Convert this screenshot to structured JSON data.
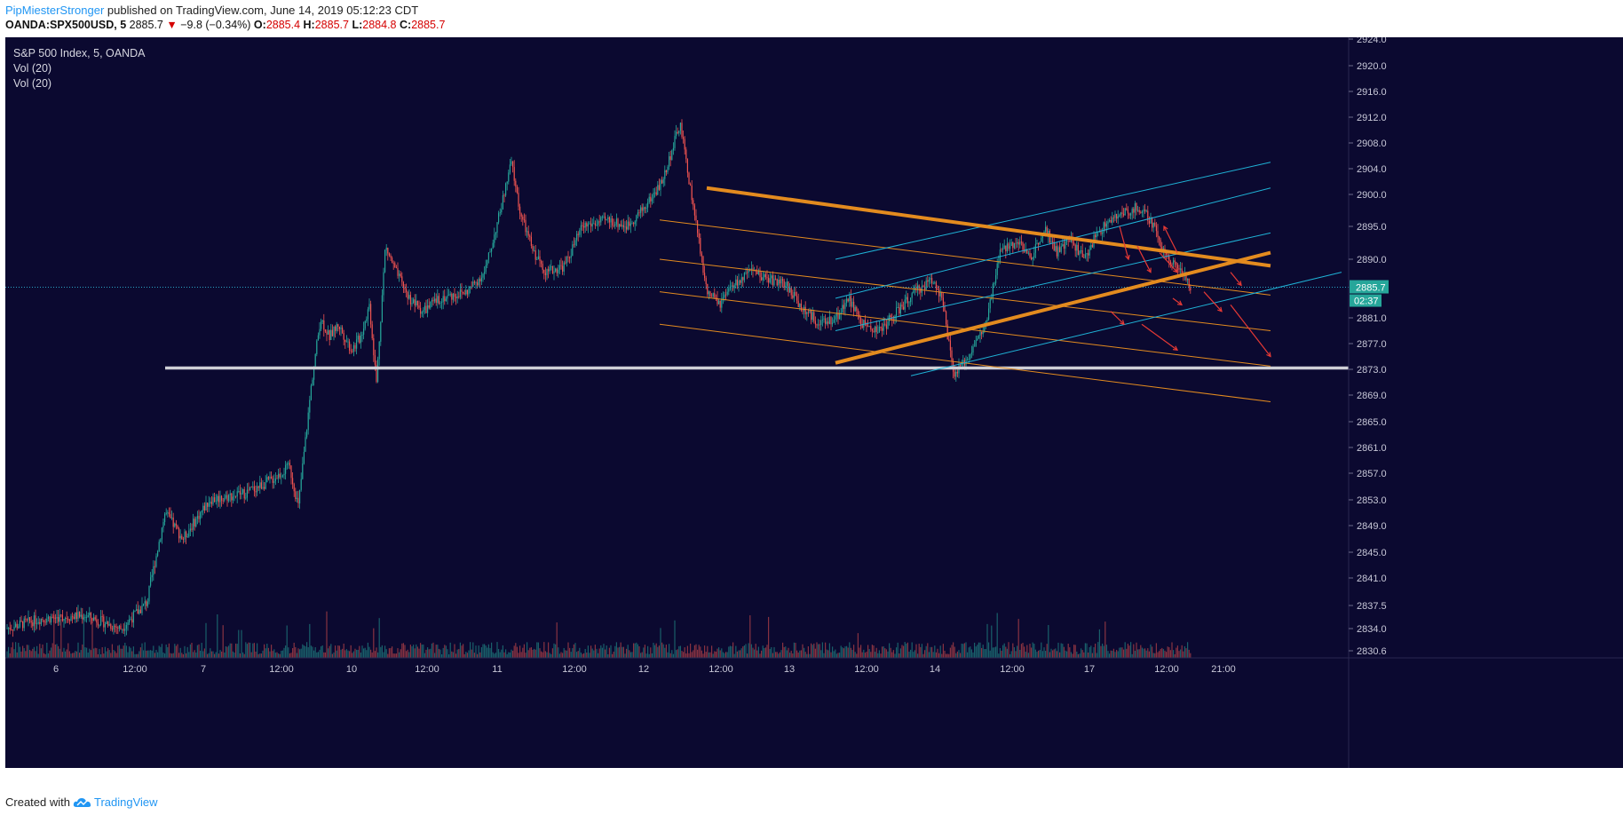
{
  "header": {
    "author": "PipMiesterStronger",
    "published_text": "published on TradingView.com, June 14, 2019 05:12:23 CDT",
    "symbol": "OANDA:SPX500USD, 5",
    "last": "2885.7",
    "change": "−9.8 (−0.34%)",
    "o_label": "O:",
    "o_value": "2885.4",
    "h_label": "H:",
    "h_value": "2885.7",
    "l_label": "L:",
    "l_value": "2884.8",
    "c_label": "C:",
    "c_value": "2885.7"
  },
  "overlay": {
    "title": "S&P 500 Index, 5, OANDA",
    "indicators": [
      "Vol (20)",
      "Vol (20)"
    ]
  },
  "footer": {
    "created_with": "Created with",
    "brand": "TradingView"
  },
  "colors": {
    "background": "#0b0930",
    "up": "#26a69a",
    "down": "#ef5350",
    "orange": "#e38b1f",
    "cyan": "#1fb2d6",
    "support": "#cfcfd6"
  },
  "chart_data": {
    "type": "candlestick",
    "symbol": "OANDA:SPX500USD",
    "interval": "5",
    "y_ticks": [
      2924.0,
      2920.0,
      2916.0,
      2912.0,
      2908.0,
      2904.0,
      2900.0,
      2895.0,
      2890.0,
      2881.0,
      2877.0,
      2873.0,
      2869.0,
      2865.0,
      2861.0,
      2857.0,
      2853.0,
      2849.0,
      2845.0,
      2841.0,
      2837.5,
      2834.0,
      2830.6
    ],
    "x_ticks": [
      "6",
      "12:00",
      "7",
      "12:00",
      "10",
      "12:00",
      "11",
      "12:00",
      "12",
      "12:00",
      "13",
      "12:00",
      "14",
      "12:00",
      "17",
      "12:00",
      "21:00"
    ],
    "last_price": "2885.7",
    "countdown": "02:37",
    "price_path": [
      [
        0,
        2834
      ],
      [
        40,
        2835.5
      ],
      [
        90,
        2836
      ],
      [
        130,
        2834
      ],
      [
        160,
        2838
      ],
      [
        180,
        2851
      ],
      [
        200,
        2847
      ],
      [
        230,
        2853
      ],
      [
        270,
        2854
      ],
      [
        300,
        2856
      ],
      [
        320,
        2858
      ],
      [
        330,
        2852
      ],
      [
        345,
        2871
      ],
      [
        355,
        2881
      ],
      [
        365,
        2878
      ],
      [
        375,
        2880
      ],
      [
        390,
        2876
      ],
      [
        400,
        2878
      ],
      [
        410,
        2883
      ],
      [
        418,
        2871
      ],
      [
        428,
        2892
      ],
      [
        440,
        2888
      ],
      [
        455,
        2884
      ],
      [
        470,
        2882
      ],
      [
        490,
        2884
      ],
      [
        520,
        2885
      ],
      [
        540,
        2888
      ],
      [
        555,
        2896
      ],
      [
        570,
        2905
      ],
      [
        580,
        2897
      ],
      [
        595,
        2891
      ],
      [
        610,
        2888
      ],
      [
        630,
        2889
      ],
      [
        650,
        2895
      ],
      [
        680,
        2896
      ],
      [
        700,
        2895
      ],
      [
        720,
        2898
      ],
      [
        740,
        2902
      ],
      [
        760,
        2911
      ],
      [
        775,
        2898
      ],
      [
        790,
        2885
      ],
      [
        805,
        2883
      ],
      [
        820,
        2886
      ],
      [
        840,
        2888
      ],
      [
        860,
        2887
      ],
      [
        880,
        2886
      ],
      [
        900,
        2882
      ],
      [
        920,
        2880
      ],
      [
        935,
        2881
      ],
      [
        950,
        2884
      ],
      [
        965,
        2880
      ],
      [
        985,
        2879
      ],
      [
        1005,
        2882
      ],
      [
        1025,
        2885
      ],
      [
        1045,
        2887
      ],
      [
        1055,
        2884
      ],
      [
        1068,
        2872
      ],
      [
        1080,
        2874
      ],
      [
        1092,
        2877
      ],
      [
        1105,
        2880
      ],
      [
        1120,
        2891
      ],
      [
        1140,
        2893
      ],
      [
        1155,
        2890
      ],
      [
        1170,
        2895
      ],
      [
        1185,
        2891
      ],
      [
        1200,
        2893
      ],
      [
        1215,
        2890
      ],
      [
        1230,
        2894
      ],
      [
        1245,
        2896
      ],
      [
        1260,
        2897
      ],
      [
        1275,
        2898
      ],
      [
        1290,
        2896
      ],
      [
        1305,
        2891
      ],
      [
        1320,
        2889
      ],
      [
        1335,
        2885.7
      ]
    ],
    "support_level": 2873.2,
    "orange_main_line": {
      "from": [
        790,
        2901
      ],
      "to": [
        1425,
        2889
      ]
    },
    "orange_rising_line": {
      "from": [
        935,
        2874
      ],
      "to": [
        1425,
        2891
      ]
    },
    "orange_parallel_lines": [
      {
        "from": [
          737,
          2896
        ],
        "to": [
          1425,
          2884.5
        ]
      },
      {
        "from": [
          737,
          2890
        ],
        "to": [
          1425,
          2879
        ]
      },
      {
        "from": [
          737,
          2885
        ],
        "to": [
          1425,
          2873.5
        ]
      },
      {
        "from": [
          737,
          2880
        ],
        "to": [
          1425,
          2868
        ]
      }
    ],
    "cyan_channel_lines": [
      {
        "from": [
          935,
          2890
        ],
        "to": [
          1425,
          2905
        ]
      },
      {
        "from": [
          935,
          2884
        ],
        "to": [
          1425,
          2901
        ]
      },
      {
        "from": [
          935,
          2879
        ],
        "to": [
          1425,
          2894
        ]
      },
      {
        "from": [
          1020,
          2872
        ],
        "to": [
          1505,
          2888
        ]
      }
    ],
    "red_arrows": [
      {
        "from": [
          1255,
          2895
        ],
        "to": [
          1265,
          2890
        ]
      },
      {
        "from": [
          1275,
          2892
        ],
        "to": [
          1290,
          2888
        ]
      },
      {
        "from": [
          1300,
          2891
        ],
        "to": [
          1320,
          2888
        ]
      },
      {
        "from": [
          1380,
          2888
        ],
        "to": [
          1392,
          2886
        ]
      },
      {
        "from": [
          1350,
          2885
        ],
        "to": [
          1370,
          2882
        ]
      },
      {
        "from": [
          1380,
          2883
        ],
        "to": [
          1425,
          2875
        ]
      },
      {
        "from": [
          1280,
          2880
        ],
        "to": [
          1320,
          2876
        ]
      },
      {
        "from": [
          1245,
          2882
        ],
        "to": [
          1260,
          2880
        ]
      },
      {
        "from": [
          1315,
          2884
        ],
        "to": [
          1325,
          2883
        ]
      },
      {
        "from": [
          1320,
          2891
        ],
        "to": [
          1305,
          2895
        ]
      }
    ]
  }
}
